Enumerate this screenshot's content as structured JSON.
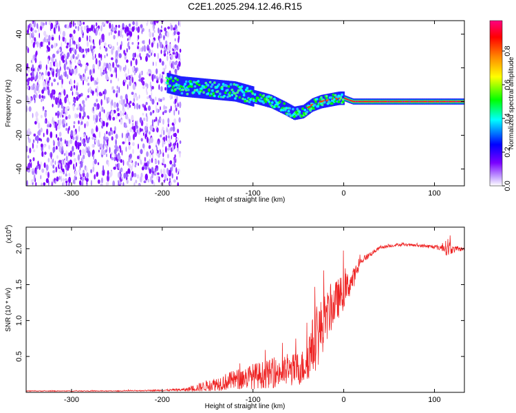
{
  "title": "C2E1.2025.294.12.46.R15",
  "chart_data": [
    {
      "type": "heatmap",
      "xlabel": "Height of straight line (km)",
      "ylabel": "Frequency (Hz)",
      "xlim": [
        -350,
        133
      ],
      "ylim": [
        -50,
        48
      ],
      "xticks": [
        -300,
        -200,
        -100,
        0,
        100
      ],
      "yticks": [
        -40,
        -20,
        0,
        20,
        40
      ],
      "colorbar": {
        "label": "Normalized spectral amplitude",
        "range": [
          0,
          0.98
        ],
        "ticks": [
          0.0,
          0.2,
          0.4,
          0.6,
          0.8
        ],
        "tick_labels": [
          "0.0",
          "0.2",
          "0.4",
          "0.6",
          "0.8"
        ],
        "colors": [
          "#ffffff",
          "#7a00ff",
          "#0000ff",
          "#00ffff",
          "#00ff00",
          "#ffff00",
          "#ff8800",
          "#ff0000",
          "#ff0080"
        ]
      },
      "signal_trace": {
        "x": [
          -195,
          -180,
          -160,
          -140,
          -120,
          -100,
          -80,
          -65,
          -55,
          -45,
          -35,
          -25,
          -15,
          -5,
          0,
          10,
          50,
          100,
          133
        ],
        "y": [
          11,
          9,
          8,
          7,
          6,
          3,
          0,
          -4,
          -7,
          -6,
          -2,
          0,
          1,
          2,
          2,
          0,
          0,
          0,
          0
        ],
        "peak_amplitude_x_start": 0
      },
      "noise_region": {
        "x": [
          -350,
          -180
        ],
        "y": [
          -50,
          48
        ]
      }
    },
    {
      "type": "line",
      "xlabel": "Height of straight line (km)",
      "ylabel": "SNR (10 * v/v)",
      "y_multiplier": "(x10",
      "y_multiplier_exp": "4",
      "y_multiplier_close": ")",
      "xlim": [
        -350,
        133
      ],
      "ylim": [
        0,
        2.3
      ],
      "xticks": [
        -300,
        -200,
        -100,
        0,
        100
      ],
      "yticks": [
        0.5,
        1.0,
        1.5,
        2.0
      ],
      "ytick_labels": [
        "0.5",
        "1.0",
        "1.5",
        "2.0"
      ],
      "color": "#ee2222",
      "envelope": {
        "x": [
          -350,
          -250,
          -200,
          -175,
          -160,
          -140,
          -120,
          -100,
          -80,
          -60,
          -45,
          -35,
          -28,
          -20,
          -10,
          0,
          10,
          20,
          40,
          60,
          80,
          100,
          110,
          115,
          120,
          133
        ],
        "y": [
          0.02,
          0.02,
          0.03,
          0.04,
          0.08,
          0.14,
          0.2,
          0.26,
          0.3,
          0.34,
          0.4,
          0.7,
          0.9,
          1.1,
          1.3,
          1.45,
          1.6,
          1.85,
          2.02,
          2.06,
          2.05,
          2.03,
          2.02,
          2.05,
          2.0,
          2.0
        ],
        "noise": [
          0.005,
          0.005,
          0.01,
          0.02,
          0.06,
          0.1,
          0.14,
          0.18,
          0.2,
          0.22,
          0.25,
          0.4,
          0.45,
          0.35,
          0.3,
          0.25,
          0.15,
          0.05,
          0.02,
          0.02,
          0.02,
          0.03,
          0.05,
          0.15,
          0.05,
          0.02
        ]
      }
    }
  ]
}
